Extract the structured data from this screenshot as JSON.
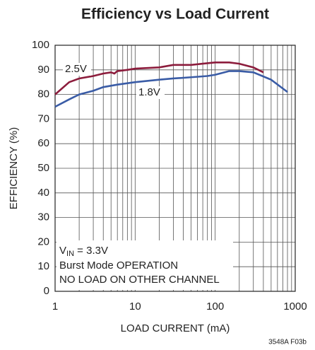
{
  "chart_data": {
    "type": "line",
    "title": "Efficiency vs Load Current",
    "xlabel": "LOAD CURRENT (mA)",
    "ylabel": "EFFICIENCY (%)",
    "xscale": "log",
    "xlim": [
      1,
      1000
    ],
    "xticks": [
      1,
      10,
      100,
      1000
    ],
    "x_minor_ticks": [
      2,
      3,
      4,
      5,
      6,
      7,
      8,
      9,
      20,
      30,
      40,
      50,
      60,
      70,
      80,
      90,
      200,
      300,
      400,
      500,
      600,
      700,
      800,
      900
    ],
    "ylim": [
      0,
      100
    ],
    "yticks": [
      0,
      10,
      20,
      30,
      40,
      50,
      60,
      70,
      80,
      90,
      100
    ],
    "grid": true,
    "series": [
      {
        "name": "2.5V",
        "color": "#8c1c3c",
        "x": [
          1,
          1.5,
          2,
          3,
          4,
          5,
          5.5,
          6,
          8,
          10,
          20,
          30,
          50,
          70,
          100,
          150,
          200,
          300,
          400
        ],
        "values": [
          80,
          85,
          86.5,
          87.5,
          88.5,
          89,
          88.5,
          89.5,
          90,
          90.5,
          91,
          92,
          92,
          92.5,
          93,
          93,
          92.5,
          91,
          89
        ]
      },
      {
        "name": "1.8V",
        "color": "#3a5ca6",
        "x": [
          1,
          1.5,
          2,
          3,
          4,
          6,
          10,
          20,
          30,
          50,
          80,
          100,
          150,
          200,
          300,
          500,
          800
        ],
        "values": [
          75,
          78,
          80,
          81.5,
          83,
          84,
          85,
          86,
          86.5,
          87,
          87.5,
          88,
          89.5,
          89.5,
          89,
          86,
          81
        ]
      }
    ],
    "annotation": {
      "v": "V",
      "sub": "IN",
      "rest": " = 3.3V",
      "lines": [
        "Burst Mode OPERATION",
        "NO LOAD ON OTHER CHANNEL"
      ]
    },
    "footer": "3548A F03b"
  }
}
